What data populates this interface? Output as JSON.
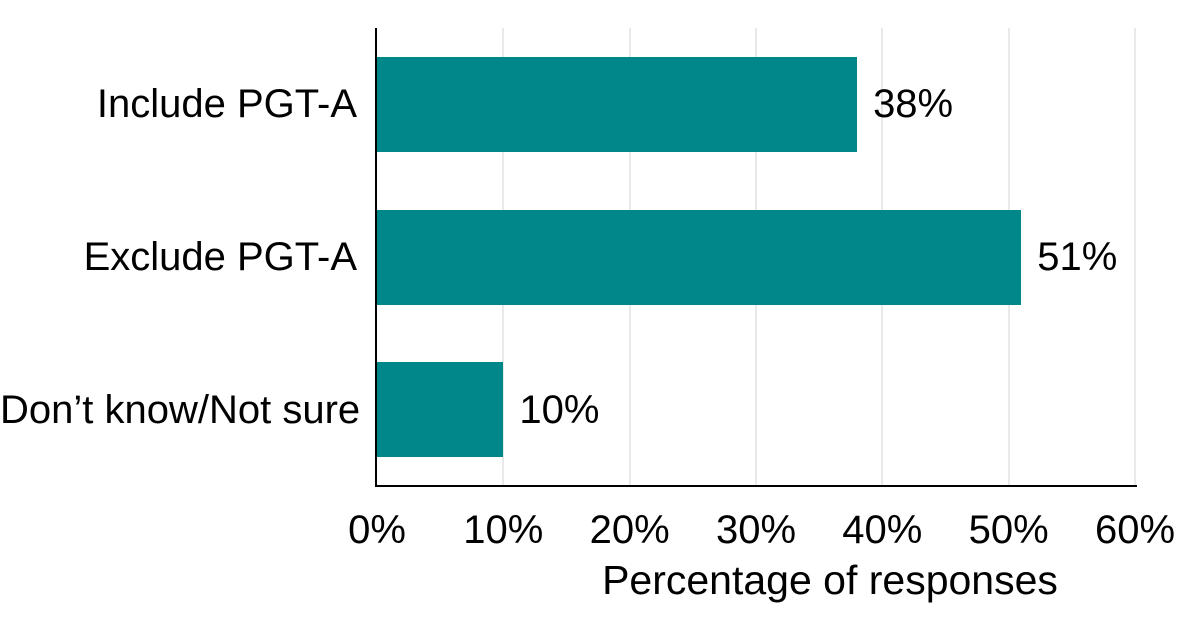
{
  "chart_data": {
    "type": "bar",
    "orientation": "horizontal",
    "title": "",
    "xlabel": "Percentage of responses",
    "ylabel": "",
    "categories": [
      "Include PGT-A",
      "Exclude PGT-A",
      "Don’t know/Not sure"
    ],
    "values": [
      38,
      51,
      10
    ],
    "value_labels": [
      "38%",
      "51%",
      "10%"
    ],
    "xlim": [
      0,
      60
    ],
    "x_tick_values": [
      0,
      10,
      20,
      30,
      40,
      50,
      60
    ],
    "x_tick_labels": [
      "0%",
      "10%",
      "20%",
      "30%",
      "40%",
      "50%",
      "60%"
    ],
    "grid": "vertical-only",
    "legend": "none",
    "colors": {
      "bar": "#00878a",
      "gridline": "#e9e9e9",
      "axis_line": "#000000",
      "text": "#000000",
      "background": "#ffffff"
    }
  }
}
